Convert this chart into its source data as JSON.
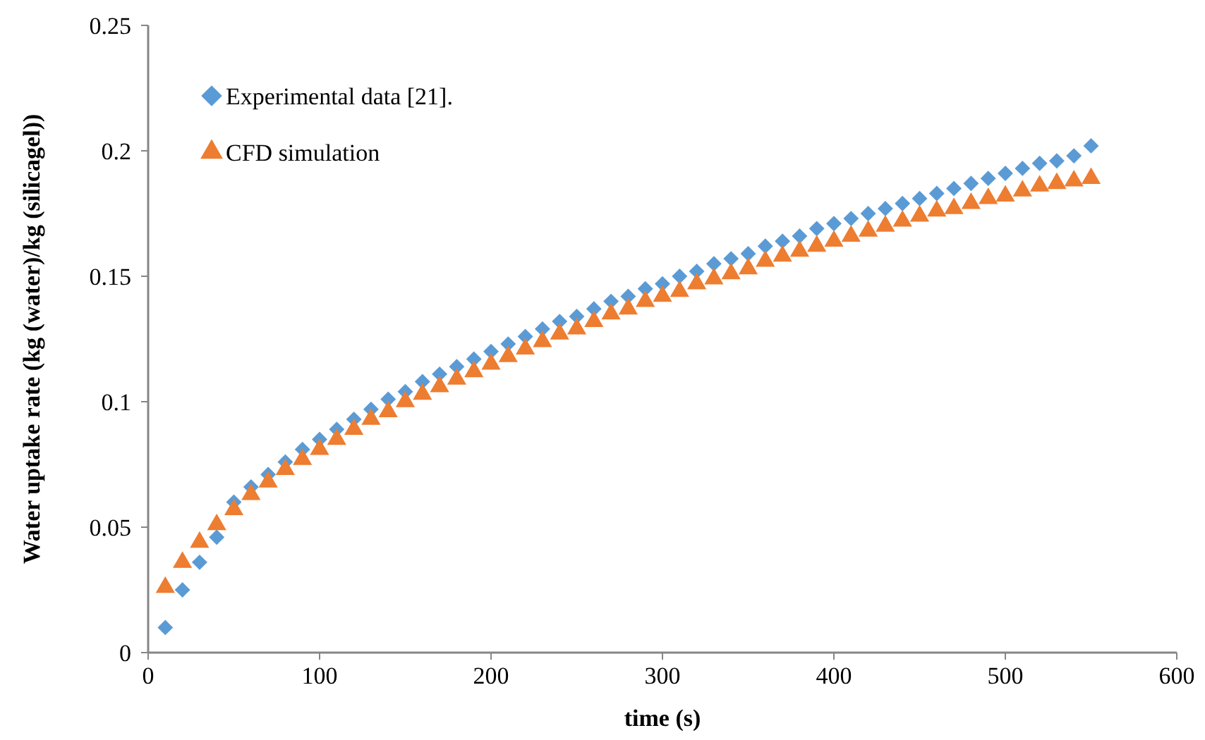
{
  "chart_data": {
    "type": "scatter",
    "xlabel": "time (s)",
    "ylabel": "Water uptake rate (kg (water)/kg (silicagel))",
    "x": [
      10,
      20,
      30,
      40,
      50,
      60,
      70,
      80,
      90,
      100,
      110,
      120,
      130,
      140,
      150,
      160,
      170,
      180,
      190,
      200,
      210,
      220,
      230,
      240,
      250,
      260,
      270,
      280,
      290,
      300,
      310,
      320,
      330,
      340,
      350,
      360,
      370,
      380,
      390,
      400,
      410,
      420,
      430,
      440,
      450,
      460,
      470,
      480,
      490,
      500,
      510,
      520,
      530,
      540,
      550
    ],
    "xlim": [
      0,
      600
    ],
    "xticks": [
      0,
      100,
      200,
      300,
      400,
      500,
      600
    ],
    "ylim": [
      0,
      0.25
    ],
    "yticks": [
      0,
      0.05,
      0.1,
      0.15,
      0.2,
      0.25
    ],
    "grid": false,
    "legend": "top left",
    "series": [
      {
        "name": "Experimental data  [21].",
        "color": "#5b9bd5",
        "marker": "diamond",
        "values": [
          0.01,
          0.025,
          0.036,
          0.046,
          0.06,
          0.066,
          0.071,
          0.076,
          0.081,
          0.085,
          0.089,
          0.093,
          0.097,
          0.101,
          0.104,
          0.108,
          0.111,
          0.114,
          0.117,
          0.12,
          0.123,
          0.126,
          0.129,
          0.132,
          0.134,
          0.137,
          0.14,
          0.142,
          0.145,
          0.147,
          0.15,
          0.152,
          0.155,
          0.157,
          0.159,
          0.162,
          0.164,
          0.166,
          0.169,
          0.171,
          0.173,
          0.175,
          0.177,
          0.179,
          0.181,
          0.183,
          0.185,
          0.187,
          0.189,
          0.191,
          0.193,
          0.195,
          0.196,
          0.198,
          0.202
        ]
      },
      {
        "name": "CFD simulation",
        "color": "#ed7d31",
        "marker": "triangle",
        "values": [
          0.026,
          0.036,
          0.044,
          0.051,
          0.057,
          0.063,
          0.068,
          0.073,
          0.077,
          0.081,
          0.085,
          0.089,
          0.093,
          0.096,
          0.1,
          0.103,
          0.106,
          0.109,
          0.112,
          0.115,
          0.118,
          0.121,
          0.124,
          0.127,
          0.129,
          0.132,
          0.135,
          0.137,
          0.14,
          0.142,
          0.144,
          0.147,
          0.149,
          0.151,
          0.153,
          0.156,
          0.158,
          0.16,
          0.162,
          0.164,
          0.166,
          0.168,
          0.17,
          0.172,
          0.174,
          0.176,
          0.177,
          0.179,
          0.181,
          0.182,
          0.184,
          0.186,
          0.187,
          0.188,
          0.189
        ]
      }
    ]
  }
}
